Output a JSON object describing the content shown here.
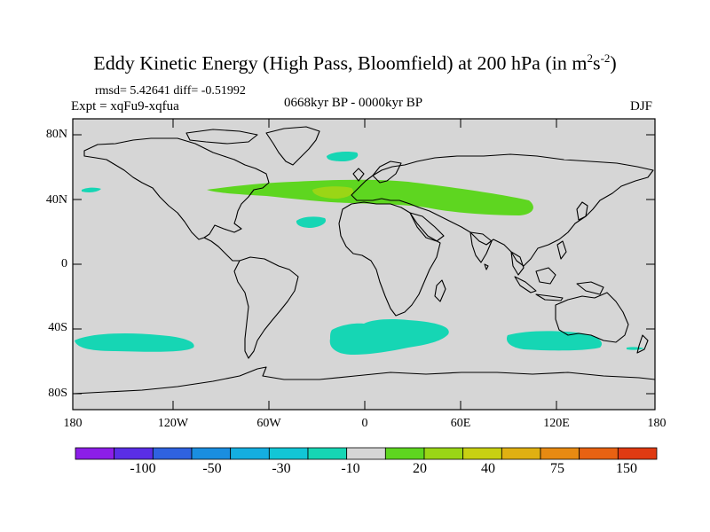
{
  "title": {
    "main": "Eddy Kinetic Energy (High Pass, Bloomfield) at 200 hPa (in m",
    "sup1": "2",
    "mid": "s",
    "sup2": "-2",
    "close": ")"
  },
  "stats": "rmsd= 5.42641 diff= -0.51992",
  "experiment": "Expt = xqFu9-xqfua",
  "period": "0668kyr BP - 0000kyr BP",
  "season": "DJF",
  "lat_labels": [
    "80N",
    "40N",
    "0",
    "40S",
    "80S"
  ],
  "lon_labels": [
    "180",
    "120W",
    "60W",
    "0",
    "60E",
    "120E",
    "180"
  ],
  "colorbar": {
    "colors": [
      "#8c1ee8",
      "#5a2ee6",
      "#2f62e0",
      "#1a8ee0",
      "#14aee0",
      "#12c6d6",
      "#16d6b4",
      "#d6d6d6",
      "#5ed620",
      "#9ad616",
      "#c8d012",
      "#e0b012",
      "#e88a12",
      "#e86212",
      "#e03a12"
    ],
    "labels": [
      "-100",
      "-50",
      "-30",
      "-10",
      "20",
      "40",
      "75",
      "150"
    ]
  },
  "colors": {
    "land_sea_background": "#d6d6d6",
    "negative_anomaly": "#16d6b4",
    "positive_anomaly": "#5ed620",
    "strong_positive": "#9ad616"
  }
}
